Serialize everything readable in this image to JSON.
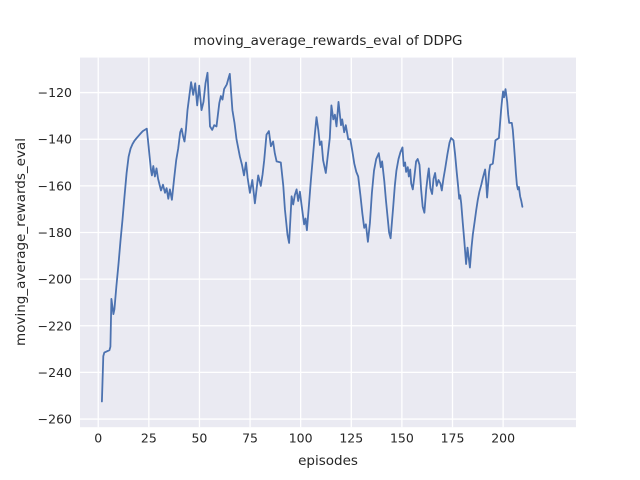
{
  "figure": {
    "title": "moving_average_rewards_eval of DDPG",
    "xlabel": "episodes",
    "ylabel": "moving_average_rewards_eval"
  },
  "chart_data": {
    "type": "line",
    "title": "moving_average_rewards_eval of DDPG",
    "xlabel": "episodes",
    "ylabel": "moving_average_rewards_eval",
    "x_ticks": [
      0,
      25,
      50,
      75,
      100,
      125,
      150,
      175,
      200
    ],
    "y_ticks": [
      -120,
      -140,
      -160,
      -180,
      -200,
      -220,
      -240,
      -260
    ],
    "xlim": [
      -9,
      236
    ],
    "ylim": [
      -263.5,
      -105
    ],
    "grid": true,
    "legend": "none",
    "background_color": "#EAEAF2",
    "grid_color": "#FFFFFF",
    "line_color": "#4C72B0",
    "text_color": "#262626",
    "series": [
      {
        "name": "moving_average_rewards_eval",
        "points": [
          [
            1.8,
            -252.5
          ],
          [
            2.5,
            -233
          ],
          [
            3,
            -231.5
          ],
          [
            5.5,
            -230.5
          ],
          [
            6,
            -229
          ],
          [
            6.5,
            -208.5
          ],
          [
            7.5,
            -215
          ],
          [
            8,
            -213
          ],
          [
            9,
            -203
          ],
          [
            10,
            -193.5
          ],
          [
            11,
            -183.5
          ],
          [
            12,
            -174.5
          ],
          [
            13,
            -164.5
          ],
          [
            14,
            -154.5
          ],
          [
            15,
            -147.5
          ],
          [
            16,
            -144
          ],
          [
            17,
            -142
          ],
          [
            18,
            -140.5
          ],
          [
            19,
            -139.5
          ],
          [
            20,
            -138.5
          ],
          [
            21,
            -137.5
          ],
          [
            22,
            -136.5
          ],
          [
            23,
            -136
          ],
          [
            24,
            -135.5
          ],
          [
            25,
            -144
          ],
          [
            26,
            -153
          ],
          [
            26.5,
            -155.5
          ],
          [
            27.2,
            -151.5
          ],
          [
            28,
            -156
          ],
          [
            28.8,
            -152.5
          ],
          [
            29.6,
            -157
          ],
          [
            31,
            -162
          ],
          [
            32,
            -159.5
          ],
          [
            33,
            -163
          ],
          [
            33.8,
            -161
          ],
          [
            34.6,
            -165.5
          ],
          [
            35.4,
            -161.5
          ],
          [
            36.4,
            -166
          ],
          [
            37.5,
            -157
          ],
          [
            38.5,
            -149
          ],
          [
            39.5,
            -144
          ],
          [
            40.5,
            -137
          ],
          [
            41.2,
            -135.5
          ],
          [
            42,
            -139
          ],
          [
            42.6,
            -141
          ],
          [
            43.3,
            -136
          ],
          [
            44.1,
            -127.5
          ],
          [
            45.3,
            -119.5
          ],
          [
            45.9,
            -115.5
          ],
          [
            46.9,
            -121
          ],
          [
            47.9,
            -116
          ],
          [
            48.9,
            -125.5
          ],
          [
            49.9,
            -117
          ],
          [
            51,
            -127.5
          ],
          [
            52,
            -124
          ],
          [
            53,
            -116
          ],
          [
            54,
            -111.5
          ],
          [
            55.2,
            -134.5
          ],
          [
            56.3,
            -136
          ],
          [
            57.3,
            -134
          ],
          [
            58.4,
            -134.5
          ],
          [
            59.8,
            -124.5
          ],
          [
            60.6,
            -121.5
          ],
          [
            61.4,
            -123
          ],
          [
            62.2,
            -118.5
          ],
          [
            63.5,
            -116.5
          ],
          [
            64.3,
            -114
          ],
          [
            65,
            -112
          ],
          [
            66.3,
            -127.5
          ],
          [
            67.3,
            -133
          ],
          [
            68.3,
            -140
          ],
          [
            70,
            -147.5
          ],
          [
            71,
            -151
          ],
          [
            72,
            -155.5
          ],
          [
            73,
            -150
          ],
          [
            73.8,
            -156.5
          ],
          [
            74.9,
            -163
          ],
          [
            76.1,
            -157.5
          ],
          [
            77.4,
            -167.5
          ],
          [
            79,
            -155.5
          ],
          [
            80.3,
            -160
          ],
          [
            81.2,
            -155
          ],
          [
            82,
            -149
          ],
          [
            83.1,
            -138
          ],
          [
            84.3,
            -136.5
          ],
          [
            85.3,
            -143
          ],
          [
            86.4,
            -141
          ],
          [
            87.2,
            -146
          ],
          [
            88.1,
            -149.5
          ],
          [
            90.2,
            -150
          ],
          [
            91.4,
            -160
          ],
          [
            92.2,
            -170
          ],
          [
            93.5,
            -181
          ],
          [
            94.3,
            -184.5
          ],
          [
            95.5,
            -164.5
          ],
          [
            96.3,
            -168
          ],
          [
            97.1,
            -164
          ],
          [
            98,
            -161.5
          ],
          [
            98.8,
            -166.5
          ],
          [
            99.6,
            -162.5
          ],
          [
            100.4,
            -168
          ],
          [
            101.7,
            -176.5
          ],
          [
            102.4,
            -174
          ],
          [
            103.1,
            -179
          ],
          [
            104.1,
            -168
          ],
          [
            105,
            -158
          ],
          [
            106,
            -148
          ],
          [
            107,
            -138
          ],
          [
            107.8,
            -130.5
          ],
          [
            108.7,
            -136
          ],
          [
            109.5,
            -142.5
          ],
          [
            110.3,
            -141
          ],
          [
            111.1,
            -149
          ],
          [
            112.4,
            -154.5
          ],
          [
            113.6,
            -145.5
          ],
          [
            114.4,
            -139.5
          ],
          [
            115.2,
            -125.5
          ],
          [
            116.1,
            -131.5
          ],
          [
            116.9,
            -129.5
          ],
          [
            117.7,
            -134.5
          ],
          [
            118.7,
            -124
          ],
          [
            119.9,
            -134
          ],
          [
            120.5,
            -131.5
          ],
          [
            121.5,
            -137
          ],
          [
            122.3,
            -134
          ],
          [
            123.5,
            -140
          ],
          [
            124.5,
            -140
          ],
          [
            125.5,
            -145
          ],
          [
            126.5,
            -150.5
          ],
          [
            127.5,
            -154
          ],
          [
            128.4,
            -156
          ],
          [
            129.5,
            -164
          ],
          [
            130.5,
            -172
          ],
          [
            131.4,
            -178
          ],
          [
            132.2,
            -176.5
          ],
          [
            133.2,
            -184
          ],
          [
            134.2,
            -176
          ],
          [
            135.2,
            -163
          ],
          [
            136.2,
            -153.5
          ],
          [
            137.3,
            -148.5
          ],
          [
            138.6,
            -146
          ],
          [
            139.6,
            -152
          ],
          [
            140.2,
            -149.5
          ],
          [
            141.3,
            -158
          ],
          [
            142.1,
            -166
          ],
          [
            142.9,
            -173
          ],
          [
            143.7,
            -180
          ],
          [
            144.4,
            -182.5
          ],
          [
            145.7,
            -169
          ],
          [
            146.5,
            -160
          ],
          [
            147.3,
            -153.5
          ],
          [
            148.3,
            -148.5
          ],
          [
            149.3,
            -145.5
          ],
          [
            150.3,
            -143.5
          ],
          [
            150.9,
            -151.5
          ],
          [
            151.6,
            -150
          ],
          [
            152.1,
            -154
          ],
          [
            152.9,
            -152
          ],
          [
            153.4,
            -156
          ],
          [
            154.1,
            -153
          ],
          [
            154.6,
            -159
          ],
          [
            155.4,
            -161.5
          ],
          [
            156.2,
            -156
          ],
          [
            157,
            -149.5
          ],
          [
            157.8,
            -148.5
          ],
          [
            158.7,
            -151
          ],
          [
            159.5,
            -161.5
          ],
          [
            160.3,
            -169
          ],
          [
            161.1,
            -171.5
          ],
          [
            162,
            -161.5
          ],
          [
            162.8,
            -155.5
          ],
          [
            163.3,
            -152.5
          ],
          [
            164.1,
            -161
          ],
          [
            164.9,
            -163.5
          ],
          [
            165.6,
            -157
          ],
          [
            166.4,
            -154.5
          ],
          [
            167.2,
            -160
          ],
          [
            168.1,
            -157.5
          ],
          [
            169,
            -159
          ],
          [
            169.7,
            -162
          ],
          [
            170.5,
            -157
          ],
          [
            171.4,
            -152.5
          ],
          [
            172.5,
            -146.5
          ],
          [
            173.5,
            -141.5
          ],
          [
            174.3,
            -139.5
          ],
          [
            175.5,
            -140.5
          ],
          [
            176.3,
            -146.5
          ],
          [
            177.1,
            -154.5
          ],
          [
            177.8,
            -160.5
          ],
          [
            178.3,
            -165.5
          ],
          [
            178.8,
            -164
          ],
          [
            179.3,
            -167.5
          ],
          [
            180.1,
            -176
          ],
          [
            180.8,
            -183
          ],
          [
            181.7,
            -193.5
          ],
          [
            182.4,
            -186.5
          ],
          [
            183.6,
            -195
          ],
          [
            184.4,
            -186.5
          ],
          [
            185,
            -181
          ],
          [
            185.9,
            -175.5
          ],
          [
            186.7,
            -170.5
          ],
          [
            187.5,
            -166
          ],
          [
            188.3,
            -162.5
          ],
          [
            189.2,
            -159.5
          ],
          [
            190,
            -156.5
          ],
          [
            191.1,
            -153
          ],
          [
            191.6,
            -158
          ],
          [
            192.1,
            -165
          ],
          [
            193.1,
            -154
          ],
          [
            193.6,
            -151
          ],
          [
            194.9,
            -150.5
          ],
          [
            195.6,
            -145.5
          ],
          [
            196.2,
            -140.5
          ],
          [
            197.9,
            -139.5
          ],
          [
            198.4,
            -134
          ],
          [
            199,
            -127.5
          ],
          [
            199.5,
            -123
          ],
          [
            200,
            -119.5
          ],
          [
            200.5,
            -122
          ],
          [
            201.2,
            -118.5
          ],
          [
            202,
            -124
          ],
          [
            202.5,
            -129.5
          ],
          [
            203,
            -133
          ],
          [
            204.3,
            -133
          ],
          [
            204.8,
            -136
          ],
          [
            205.3,
            -141.5
          ],
          [
            205.8,
            -148
          ],
          [
            206.3,
            -154.5
          ],
          [
            206.8,
            -159.5
          ],
          [
            207.3,
            -161.5
          ],
          [
            207.8,
            -160.5
          ],
          [
            208.4,
            -164.5
          ],
          [
            209,
            -166.5
          ],
          [
            209.5,
            -169
          ]
        ]
      }
    ]
  }
}
